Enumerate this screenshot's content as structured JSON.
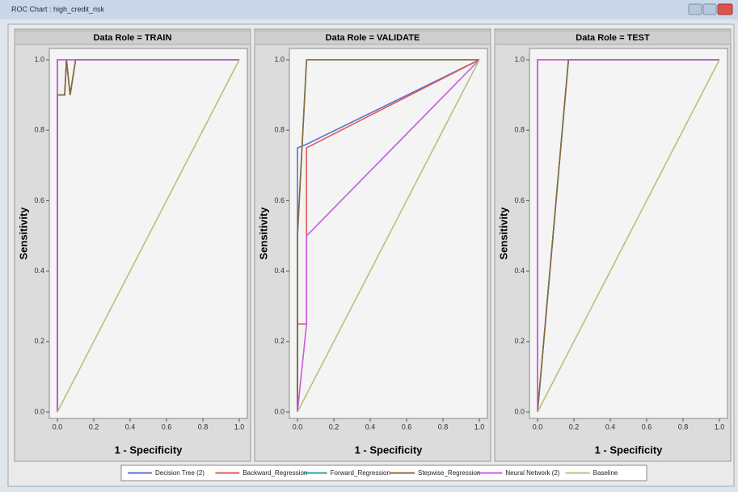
{
  "window_title": "ROC Chart : high_credit_risk",
  "legend": [
    {
      "name": "Decision Tree (2)",
      "color": "#5b6fd6"
    },
    {
      "name": "Backward_Regression",
      "color": "#e05a5a"
    },
    {
      "name": "Forward_Regression",
      "color": "#2aa39a"
    },
    {
      "name": "Stepwise_Regression",
      "color": "#8b6a3a"
    },
    {
      "name": "Neural Network (2)",
      "color": "#c65ce0"
    },
    {
      "name": "Baseline",
      "color": "#b5c27a"
    }
  ],
  "chart_data": [
    {
      "type": "line",
      "title": "Data Role = TRAIN",
      "xlabel": "1 - Specificity",
      "ylabel": "Sensitivity",
      "xlim": [
        0,
        1
      ],
      "ylim": [
        0,
        1
      ],
      "xticks": [
        {
          "value": 0,
          "label": "0.0"
        },
        0.2,
        0.4,
        0.6,
        0.8,
        {
          "value": 1,
          "label": "1.0"
        }
      ],
      "yticks": [
        {
          "value": 0,
          "label": "0.0"
        },
        0.2,
        0.4,
        0.6,
        0.8,
        {
          "value": 1,
          "label": "1.0"
        }
      ],
      "series": [
        {
          "x": [
            0,
            0,
            1
          ],
          "values": [
            0,
            1,
            1
          ]
        },
        {
          "x": [
            0,
            0,
            0.04,
            0.05,
            0.07,
            0.1,
            1
          ],
          "values": [
            0,
            0.9,
            0.9,
            1,
            0.9,
            1,
            1
          ]
        },
        {
          "x": [
            0,
            0,
            0.04,
            0.05,
            0.07,
            0.1,
            1
          ],
          "values": [
            0,
            0.9,
            0.9,
            1,
            0.9,
            1,
            1
          ]
        },
        {
          "x": [
            0,
            0,
            0.04,
            0.05,
            0.07,
            0.1,
            1
          ],
          "values": [
            0,
            0.9,
            0.9,
            1,
            0.9,
            1,
            1
          ]
        },
        {
          "x": [
            0,
            0,
            1
          ],
          "values": [
            0,
            1,
            1
          ]
        },
        {
          "x": [
            0,
            1
          ],
          "values": [
            0,
            1
          ]
        }
      ]
    },
    {
      "type": "line",
      "title": "Data Role = VALIDATE",
      "xlabel": "1 - Specificity",
      "ylabel": "Sensitivity",
      "xlim": [
        0,
        1
      ],
      "ylim": [
        0,
        1
      ],
      "xticks": [
        {
          "value": 0,
          "label": "0.0"
        },
        0.2,
        0.4,
        0.6,
        0.8,
        {
          "value": 1,
          "label": "1.0"
        }
      ],
      "yticks": [
        {
          "value": 0,
          "label": "0.0"
        },
        0.2,
        0.4,
        0.6,
        0.8,
        {
          "value": 1,
          "label": "1.0"
        }
      ],
      "series": [
        {
          "x": [
            0,
            0,
            0.05,
            1
          ],
          "values": [
            0,
            0.75,
            0.76,
            1
          ]
        },
        {
          "x": [
            0,
            0,
            0.05,
            0.05,
            1
          ],
          "values": [
            0,
            0.25,
            0.25,
            0.75,
            1
          ]
        },
        {
          "x": [
            0,
            0,
            0.05,
            1
          ],
          "values": [
            0,
            0.5,
            1,
            1
          ]
        },
        {
          "x": [
            0,
            0,
            0.05,
            1
          ],
          "values": [
            0,
            0.5,
            1,
            1
          ]
        },
        {
          "x": [
            0,
            0.05,
            0.05,
            1
          ],
          "values": [
            0,
            0.25,
            0.5,
            1
          ]
        },
        {
          "x": [
            0,
            1
          ],
          "values": [
            0,
            1
          ]
        }
      ]
    },
    {
      "type": "line",
      "title": "Data Role = TEST",
      "xlabel": "1 - Specificity",
      "ylabel": "Sensitivity",
      "xlim": [
        0,
        1
      ],
      "ylim": [
        0,
        1
      ],
      "xticks": [
        {
          "value": 0,
          "label": "0.0"
        },
        0.2,
        0.4,
        0.6,
        0.8,
        {
          "value": 1,
          "label": "1.0"
        }
      ],
      "yticks": [
        {
          "value": 0,
          "label": "0.0"
        },
        0.2,
        0.4,
        0.6,
        0.8,
        {
          "value": 1,
          "label": "1.0"
        }
      ],
      "series": [
        {
          "x": [
            0,
            0.17,
            1
          ],
          "values": [
            0,
            1,
            1
          ]
        },
        {
          "x": [
            0,
            0,
            1
          ],
          "values": [
            0,
            1,
            1
          ]
        },
        {
          "x": [
            0,
            0.17,
            1
          ],
          "values": [
            0,
            1,
            1
          ]
        },
        {
          "x": [
            0,
            0.17,
            1
          ],
          "values": [
            0,
            1,
            1
          ]
        },
        {
          "x": [
            0,
            0,
            1
          ],
          "values": [
            0,
            1,
            1
          ]
        },
        {
          "x": [
            0,
            1
          ],
          "values": [
            0,
            1
          ]
        }
      ]
    }
  ]
}
